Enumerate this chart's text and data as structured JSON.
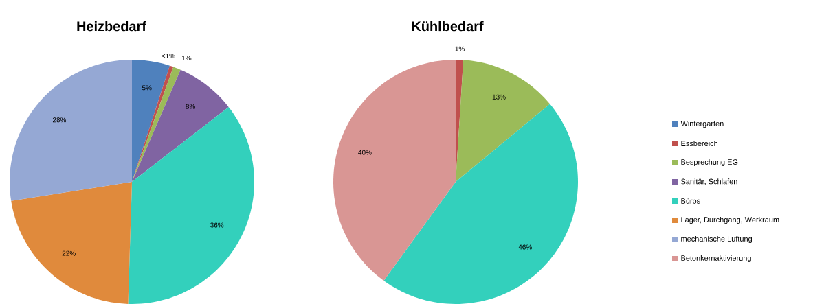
{
  "chart_data": [
    {
      "type": "pie",
      "title": "Heizbedarf",
      "categories": [
        null,
        null,
        null,
        null,
        null,
        null,
        null
      ],
      "values": [
        5,
        0.5,
        1,
        8,
        36,
        22,
        27.5
      ],
      "value_labels": [
        "5%",
        "<1%",
        "1%",
        "8%",
        "36%",
        "22%",
        "28%"
      ],
      "colors": [
        "#4f81bd",
        "#c0504d",
        "#9bbb59",
        "#8064a2",
        "#33d0bc",
        "#e08a3c",
        "#95a8d4"
      ],
      "legend": false
    },
    {
      "type": "pie",
      "title": "Kühlbedarf",
      "categories": [
        "Wintergarten",
        "Essbereich",
        "Besprechung EG",
        "Sanitär, Schlafen",
        "Büros",
        "Lager, Durchgang, Werkraum",
        "mechanische Luftung",
        "Betonkernaktivierung"
      ],
      "values": [
        0,
        1,
        13,
        0,
        46,
        0,
        0,
        40
      ],
      "value_labels": [
        null,
        "1%",
        "13%",
        null,
        "46%",
        null,
        null,
        "40%"
      ],
      "colors": [
        "#4f81bd",
        "#c0504d",
        "#9bbb59",
        "#8064a2",
        "#33d0bc",
        "#e08a3c",
        "#95a8d4",
        "#d99694"
      ],
      "legend": "right"
    }
  ]
}
